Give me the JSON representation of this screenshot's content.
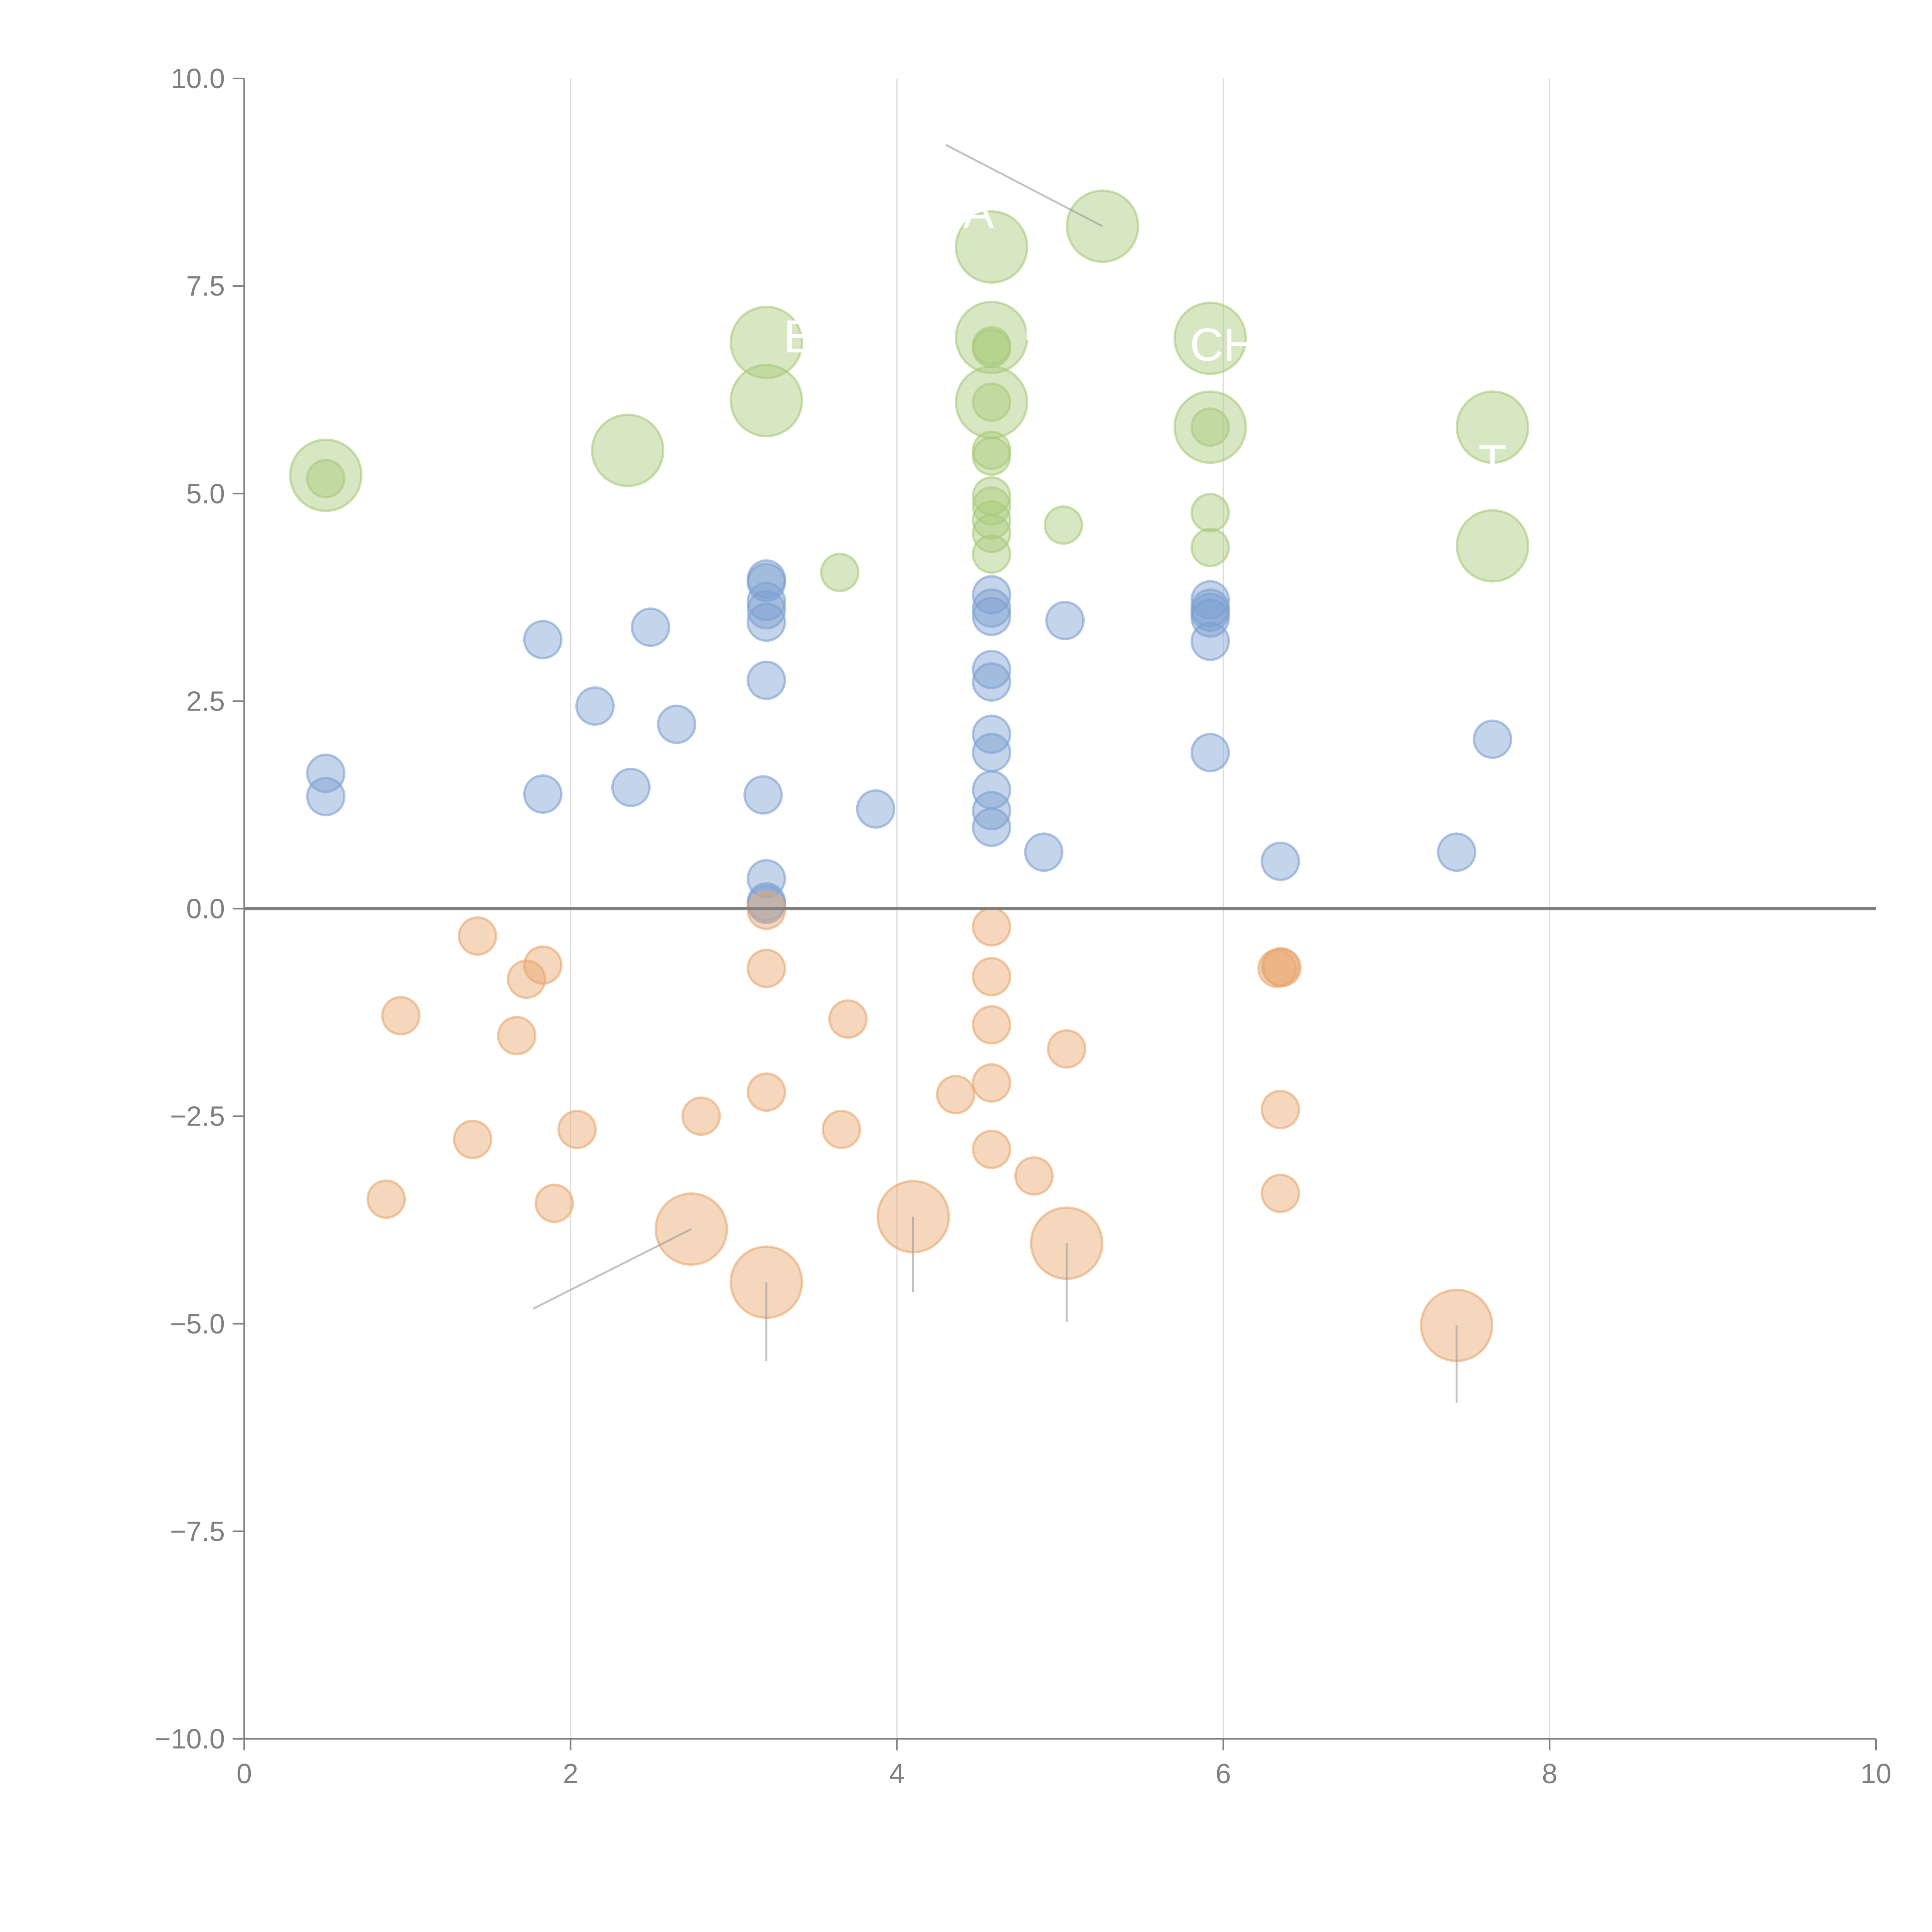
{
  "chart_data": {
    "type": "scatter",
    "title": "",
    "xlabel": "",
    "ylabel": "",
    "xlim": [
      0,
      10
    ],
    "ylim": [
      -10,
      10
    ],
    "x_ticks": [
      "0",
      "2",
      "4",
      "6",
      "8",
      "10"
    ],
    "y_ticks": [
      "−10.0",
      "−7.5",
      "−5.0",
      "−2.5",
      "0.0",
      "2.5",
      "5.0",
      "7.5",
      "10.0"
    ],
    "x_tick_values": [
      0,
      2,
      4,
      6,
      8,
      10
    ],
    "y_tick_values": [
      -10,
      -7.5,
      -5,
      -2.5,
      0,
      2.5,
      5,
      7.5,
      10
    ],
    "grid": "vertical",
    "zero_line": true,
    "legend": "none",
    "series": [
      {
        "name": "positive-high",
        "color": "#a9c97a",
        "points": [
          {
            "x": 0.5,
            "y": 5.22,
            "size": "large"
          },
          {
            "x": 0.5,
            "y": 5.18,
            "size": "small"
          },
          {
            "x": 2.35,
            "y": 5.52,
            "size": "large"
          },
          {
            "x": 3.2,
            "y": 6.82,
            "size": "large"
          },
          {
            "x": 3.2,
            "y": 6.12,
            "size": "large"
          },
          {
            "x": 3.65,
            "y": 4.05,
            "size": "small"
          },
          {
            "x": 4.58,
            "y": 7.97,
            "size": "large"
          },
          {
            "x": 4.58,
            "y": 6.88,
            "size": "large"
          },
          {
            "x": 4.58,
            "y": 6.78,
            "size": "small"
          },
          {
            "x": 4.58,
            "y": 6.75,
            "size": "small"
          },
          {
            "x": 4.58,
            "y": 6.1,
            "size": "large"
          },
          {
            "x": 4.58,
            "y": 6.1,
            "size": "small"
          },
          {
            "x": 4.58,
            "y": 5.52,
            "size": "small"
          },
          {
            "x": 4.58,
            "y": 5.45,
            "size": "small"
          },
          {
            "x": 4.58,
            "y": 4.97,
            "size": "small"
          },
          {
            "x": 4.58,
            "y": 4.85,
            "size": "small"
          },
          {
            "x": 4.58,
            "y": 4.68,
            "size": "small"
          },
          {
            "x": 4.58,
            "y": 4.52,
            "size": "small"
          },
          {
            "x": 4.58,
            "y": 4.27,
            "size": "small"
          },
          {
            "x": 5.02,
            "y": 4.62,
            "size": "small"
          },
          {
            "x": 5.26,
            "y": 8.22,
            "size": "large"
          },
          {
            "x": 5.92,
            "y": 6.87,
            "size": "large"
          },
          {
            "x": 5.92,
            "y": 5.8,
            "size": "large"
          },
          {
            "x": 5.92,
            "y": 5.8,
            "size": "small"
          },
          {
            "x": 5.92,
            "y": 4.77,
            "size": "small"
          },
          {
            "x": 5.92,
            "y": 4.35,
            "size": "small"
          },
          {
            "x": 7.65,
            "y": 5.8,
            "size": "large"
          },
          {
            "x": 7.65,
            "y": 4.37,
            "size": "large"
          }
        ]
      },
      {
        "name": "positive-mid",
        "color": "#7da0d0",
        "points": [
          {
            "x": 0.5,
            "y": 1.63,
            "size": "small"
          },
          {
            "x": 0.5,
            "y": 1.35,
            "size": "small"
          },
          {
            "x": 1.83,
            "y": 3.24,
            "size": "small"
          },
          {
            "x": 1.83,
            "y": 1.38,
            "size": "small"
          },
          {
            "x": 2.15,
            "y": 2.44,
            "size": "small"
          },
          {
            "x": 2.37,
            "y": 1.46,
            "size": "small"
          },
          {
            "x": 2.49,
            "y": 3.39,
            "size": "small"
          },
          {
            "x": 2.65,
            "y": 2.22,
            "size": "small"
          },
          {
            "x": 3.2,
            "y": 3.97,
            "size": "small"
          },
          {
            "x": 3.2,
            "y": 3.93,
            "size": "small"
          },
          {
            "x": 3.2,
            "y": 3.7,
            "size": "small"
          },
          {
            "x": 3.2,
            "y": 3.6,
            "size": "small"
          },
          {
            "x": 3.2,
            "y": 3.45,
            "size": "small"
          },
          {
            "x": 3.2,
            "y": 2.75,
            "size": "small"
          },
          {
            "x": 3.18,
            "y": 1.37,
            "size": "small"
          },
          {
            "x": 3.2,
            "y": 0.36,
            "size": "small"
          },
          {
            "x": 3.2,
            "y": 0.08,
            "size": "small"
          },
          {
            "x": 3.2,
            "y": 0.05,
            "size": "small"
          },
          {
            "x": 3.87,
            "y": 1.2,
            "size": "small"
          },
          {
            "x": 4.58,
            "y": 3.78,
            "size": "small"
          },
          {
            "x": 4.58,
            "y": 3.62,
            "size": "small"
          },
          {
            "x": 4.58,
            "y": 3.52,
            "size": "small"
          },
          {
            "x": 4.58,
            "y": 2.88,
            "size": "small"
          },
          {
            "x": 4.58,
            "y": 2.73,
            "size": "small"
          },
          {
            "x": 4.58,
            "y": 2.1,
            "size": "small"
          },
          {
            "x": 4.58,
            "y": 1.88,
            "size": "small"
          },
          {
            "x": 4.58,
            "y": 1.43,
            "size": "small"
          },
          {
            "x": 4.58,
            "y": 1.18,
            "size": "small"
          },
          {
            "x": 4.58,
            "y": 0.98,
            "size": "small"
          },
          {
            "x": 4.9,
            "y": 0.68,
            "size": "small"
          },
          {
            "x": 5.03,
            "y": 3.47,
            "size": "small"
          },
          {
            "x": 5.92,
            "y": 3.72,
            "size": "small"
          },
          {
            "x": 5.92,
            "y": 3.62,
            "size": "small"
          },
          {
            "x": 5.92,
            "y": 3.57,
            "size": "small"
          },
          {
            "x": 5.92,
            "y": 3.5,
            "size": "small"
          },
          {
            "x": 5.92,
            "y": 3.22,
            "size": "small"
          },
          {
            "x": 5.92,
            "y": 1.88,
            "size": "small"
          },
          {
            "x": 6.35,
            "y": 0.57,
            "size": "small"
          },
          {
            "x": 7.43,
            "y": 0.68,
            "size": "small"
          },
          {
            "x": 7.65,
            "y": 2.04,
            "size": "small"
          }
        ]
      },
      {
        "name": "negative",
        "color": "#e8a66e",
        "points": [
          {
            "x": 0.87,
            "y": -3.5,
            "size": "small"
          },
          {
            "x": 0.96,
            "y": -1.29,
            "size": "small"
          },
          {
            "x": 1.4,
            "y": -2.78,
            "size": "small"
          },
          {
            "x": 1.43,
            "y": -0.33,
            "size": "small"
          },
          {
            "x": 1.67,
            "y": -1.53,
            "size": "small"
          },
          {
            "x": 1.73,
            "y": -0.85,
            "size": "small"
          },
          {
            "x": 1.83,
            "y": -0.68,
            "size": "small"
          },
          {
            "x": 1.9,
            "y": -3.55,
            "size": "small"
          },
          {
            "x": 2.04,
            "y": -2.66,
            "size": "small"
          },
          {
            "x": 2.74,
            "y": -3.86,
            "size": "large"
          },
          {
            "x": 2.8,
            "y": -2.5,
            "size": "small"
          },
          {
            "x": 3.2,
            "y": -0.02,
            "size": "small"
          },
          {
            "x": 3.2,
            "y": -0.72,
            "size": "small"
          },
          {
            "x": 3.2,
            "y": -2.21,
            "size": "small"
          },
          {
            "x": 3.2,
            "y": -4.5,
            "size": "large"
          },
          {
            "x": 3.66,
            "y": -2.66,
            "size": "small"
          },
          {
            "x": 3.7,
            "y": -1.33,
            "size": "small"
          },
          {
            "x": 4.1,
            "y": -3.71,
            "size": "large"
          },
          {
            "x": 4.36,
            "y": -2.24,
            "size": "small"
          },
          {
            "x": 4.58,
            "y": -0.22,
            "size": "small"
          },
          {
            "x": 4.58,
            "y": -0.82,
            "size": "small"
          },
          {
            "x": 4.58,
            "y": -1.4,
            "size": "small"
          },
          {
            "x": 4.58,
            "y": -2.1,
            "size": "small"
          },
          {
            "x": 4.58,
            "y": -2.9,
            "size": "small"
          },
          {
            "x": 4.84,
            "y": -3.22,
            "size": "small"
          },
          {
            "x": 5.04,
            "y": -1.69,
            "size": "small"
          },
          {
            "x": 5.04,
            "y": -4.03,
            "size": "large"
          },
          {
            "x": 6.33,
            "y": -0.72,
            "size": "small"
          },
          {
            "x": 6.35,
            "y": -0.7,
            "size": "small"
          },
          {
            "x": 6.36,
            "y": -0.71,
            "size": "small"
          },
          {
            "x": 6.35,
            "y": -2.42,
            "size": "small"
          },
          {
            "x": 6.35,
            "y": -3.43,
            "size": "small"
          },
          {
            "x": 7.43,
            "y": -5.02,
            "size": "large"
          }
        ]
      }
    ],
    "annotations": [
      {
        "text": "A",
        "x": 4.5,
        "y": 8.2
      },
      {
        "text": "E",
        "x": 3.4,
        "y": 6.7
      },
      {
        "text": "L",
        "x": 4.85,
        "y": 6.85
      },
      {
        "text": "CH",
        "x": 6.0,
        "y": 6.6
      },
      {
        "text": "T",
        "x": 7.65,
        "y": 5.2
      }
    ],
    "leader_lines": [
      {
        "from": [
          5.26,
          8.22
        ],
        "to": [
          4.3,
          9.2
        ]
      },
      {
        "from": [
          2.74,
          -3.86
        ],
        "to": [
          1.77,
          -4.82
        ]
      },
      {
        "from": [
          3.2,
          -4.5
        ],
        "to": [
          3.2,
          -5.45
        ]
      },
      {
        "from": [
          4.1,
          -3.71
        ],
        "to": [
          4.1,
          -4.62
        ]
      },
      {
        "from": [
          5.04,
          -4.03
        ],
        "to": [
          5.04,
          -4.98
        ]
      },
      {
        "from": [
          7.43,
          -5.02
        ],
        "to": [
          7.43,
          -5.95
        ]
      }
    ]
  }
}
